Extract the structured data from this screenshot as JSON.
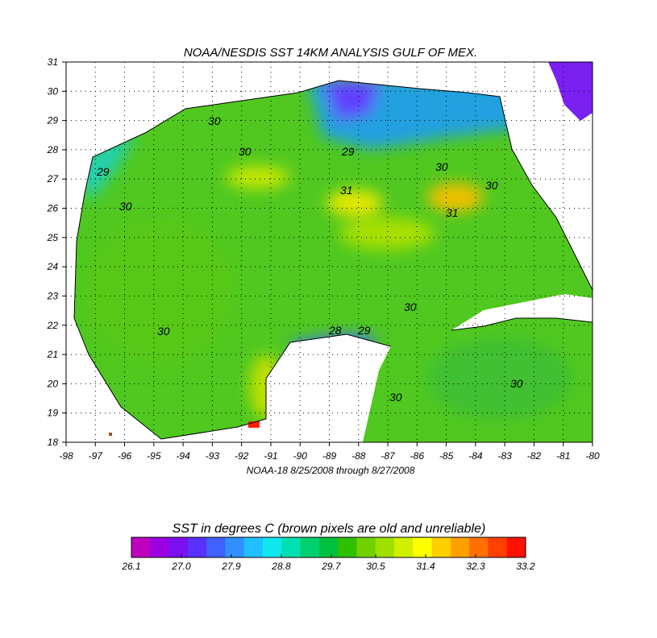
{
  "title": "NOAA/NESDIS SST 14KM ANALYSIS GULF OF MEX.",
  "subtitle": "NOAA-18  8/25/2008 through 8/27/2008",
  "xlim": [
    -98,
    -80
  ],
  "ylim": [
    18,
    31
  ],
  "xticks": [
    -98,
    -97,
    -96,
    -95,
    -94,
    -93,
    -92,
    -91,
    -90,
    -89,
    -88,
    -87,
    -86,
    -85,
    -84,
    -83,
    -82,
    -81,
    -80
  ],
  "yticks": [
    18,
    19,
    20,
    21,
    22,
    23,
    24,
    25,
    26,
    27,
    28,
    29,
    30,
    31
  ],
  "grid": true,
  "contour_labels": [
    30,
    30,
    29,
    30,
    29,
    31,
    30,
    30,
    31,
    30,
    28,
    29,
    30,
    30,
    30
  ],
  "colorbar": {
    "title": "SST in degrees C (brown pixels are old and unreliable)",
    "lim": [
      26.1,
      33.2
    ],
    "ticks": [
      26.1,
      {
        "value": 27.0,
        "label": "27.0"
      },
      27.9,
      28.8,
      29.7,
      30.5,
      31.4,
      32.3,
      33.2
    ],
    "colormap": [
      "#c000c0",
      "#9a00e0",
      "#7a10f0",
      "#5a30ff",
      "#4060ff",
      "#3090ff",
      "#20c0ff",
      "#10e8f0",
      "#00e0b0",
      "#00d070",
      "#00c040",
      "#30c000",
      "#70d000",
      "#a0e000",
      "#d0f000",
      "#ffff00",
      "#ffd000",
      "#ffa000",
      "#ff7000",
      "#ff4000",
      "#ff1000"
    ]
  }
}
